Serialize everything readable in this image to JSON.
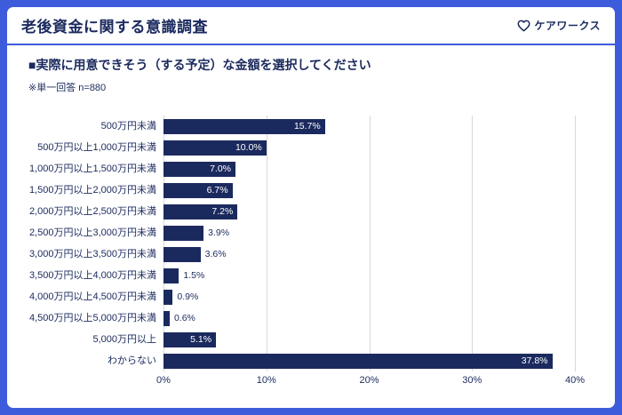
{
  "header": {
    "title": "老後資金に関する意識調査",
    "logo_text": "ケアワークス"
  },
  "question": "■実際に用意できそう（する予定）な金額を選択してください",
  "note": "※単一回答 n=880",
  "colors": {
    "frame_blue": "#3d5cdb",
    "bar_navy": "#1b2a5e",
    "grid_gray": "#d9d9d9",
    "label_inside": "#ffffff",
    "label_outside": "#1b2a5e"
  },
  "chart_data": {
    "type": "bar",
    "orientation": "horizontal",
    "title": "実際に用意できそう（する予定）な金額",
    "categories": [
      "500万円未満",
      "500万円以上1,000万円未満",
      "1,000万円以上1,500万円未満",
      "1,500万円以上2,000万円未満",
      "2,000万円以上2,500万円未満",
      "2,500万円以上3,000万円未満",
      "3,000万円以上3,500万円未満",
      "3,500万円以上4,000万円未満",
      "4,000万円以上4,500万円未満",
      "4,500万円以上5,000万円未満",
      "5,000万円以上",
      "わからない"
    ],
    "values": [
      15.7,
      10.0,
      7.0,
      6.7,
      7.2,
      3.9,
      3.6,
      1.5,
      0.9,
      0.6,
      5.1,
      37.8
    ],
    "value_labels": [
      "15.7%",
      "10.0%",
      "7.0%",
      "6.7%",
      "7.2%",
      "3.9%",
      "3.6%",
      "1.5%",
      "0.9%",
      "0.6%",
      "5.1%",
      "37.8%"
    ],
    "xlabel": "",
    "ylabel": "",
    "xlim": [
      0,
      40
    ],
    "x_ticks": [
      "0%",
      "10%",
      "20%",
      "30%",
      "40%"
    ],
    "grid": true,
    "legend": false,
    "bar_color": "#1b2a5e",
    "inside_label_min_value": 5.0
  }
}
